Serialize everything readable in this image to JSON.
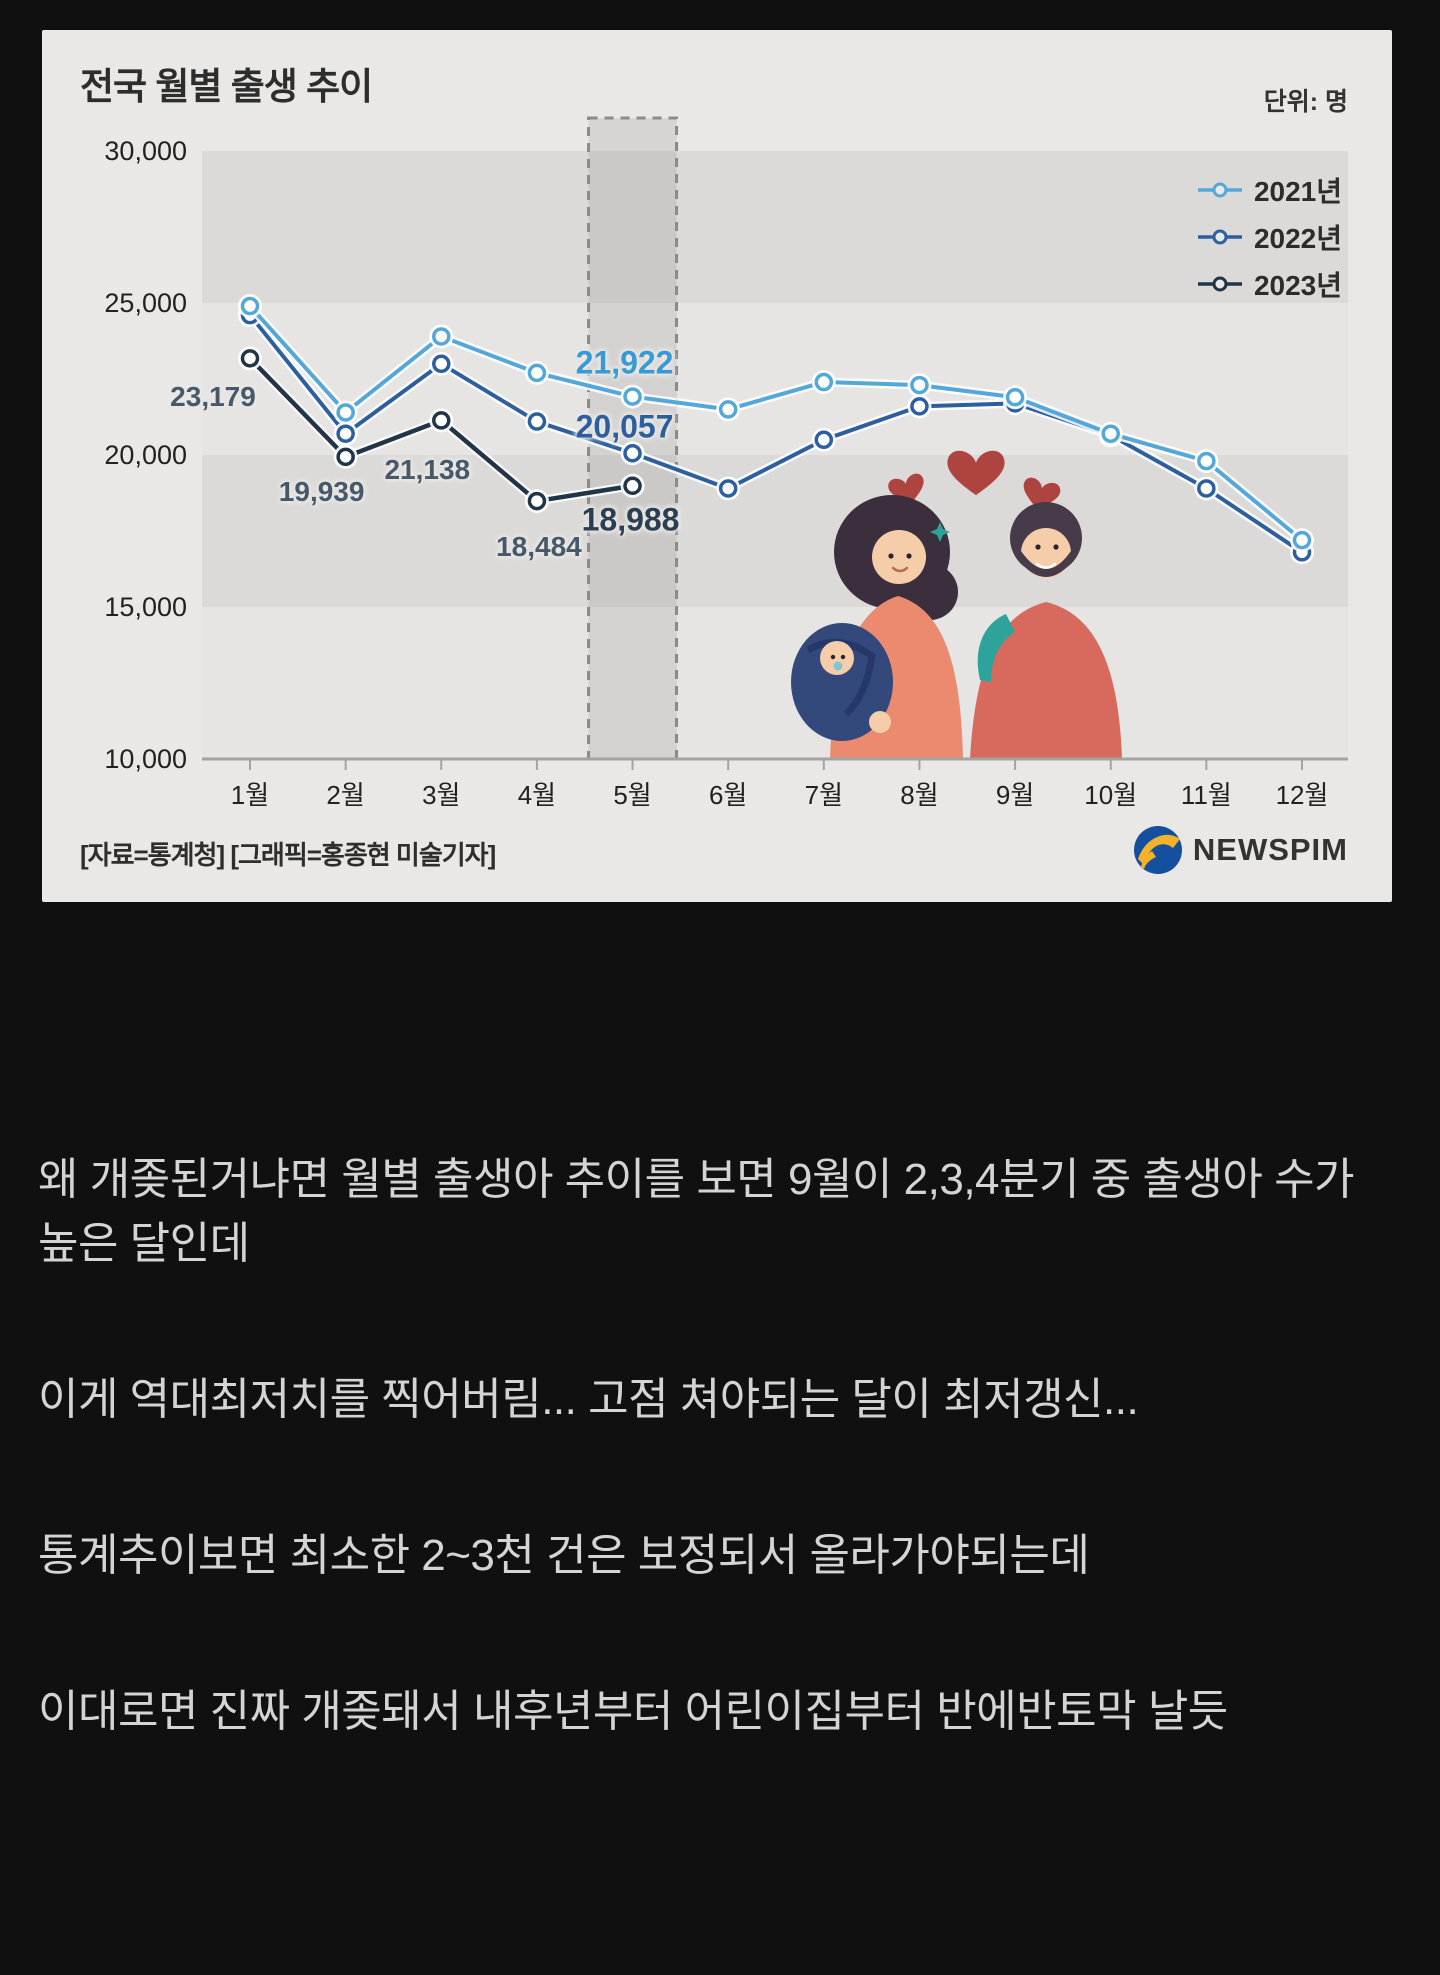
{
  "page": {
    "background": "#101010"
  },
  "card": {
    "title": "전국 월별 출생 추이",
    "unit_label": "단위: 명",
    "source_label": "[자료=통계청] [그래픽=홍종현 미술기자]",
    "publisher": "NEWSPIM"
  },
  "chart_data": {
    "type": "line",
    "title": "전국 월별 출생 추이",
    "unit": "명",
    "categories": [
      "1월",
      "2월",
      "3월",
      "4월",
      "5월",
      "6월",
      "7월",
      "8월",
      "9월",
      "10월",
      "11월",
      "12월"
    ],
    "ylim": [
      10000,
      30000
    ],
    "ytick_labels": [
      "30,000",
      "25,000",
      "20,000",
      "15,000",
      "10,000"
    ],
    "yticks": [
      30000,
      25000,
      20000,
      15000,
      10000
    ],
    "grid": "alternating-horizontal-bands",
    "legend_position": "top-right",
    "highlight_month": "5월",
    "series": [
      {
        "name": "2021년",
        "color": "#54a7d9",
        "values": [
          24900,
          21400,
          23900,
          22700,
          21922,
          21500,
          22400,
          22300,
          21900,
          20700,
          19800,
          17200
        ]
      },
      {
        "name": "2022년",
        "color": "#2d5f9f",
        "values": [
          24600,
          20700,
          23000,
          21100,
          20057,
          18900,
          20500,
          21600,
          21700,
          20650,
          18900,
          16800
        ]
      },
      {
        "name": "2023년",
        "color": "#213448",
        "values": [
          23179,
          19939,
          21138,
          18484,
          18988
        ]
      }
    ],
    "annotations": [
      {
        "text": "23,179",
        "series": "2023년",
        "month": "1월",
        "emphasis": false
      },
      {
        "text": "19,939",
        "series": "2023년",
        "month": "2월",
        "emphasis": false
      },
      {
        "text": "21,138",
        "series": "2023년",
        "month": "3월",
        "emphasis": false
      },
      {
        "text": "18,484",
        "series": "2023년",
        "month": "4월",
        "emphasis": false
      },
      {
        "text": "21,922",
        "series": "2021년",
        "month": "5월",
        "emphasis": true
      },
      {
        "text": "20,057",
        "series": "2022년",
        "month": "5월",
        "emphasis": true
      },
      {
        "text": "18,988",
        "series": "2023년",
        "month": "5월",
        "emphasis": true
      }
    ]
  },
  "post_text": {
    "paragraphs": [
      "왜 개좆된거냐면 월별 출생아 추이를 보면 9월이 2,3,4분기 중 출생아 수가 높은 달인데",
      "이게 역대최저치를 찍어버림... 고점 쳐야되는 달이 최저갱신...",
      "통계추이보면 최소한 2~3천 건은 보정되서 올라가야되는데",
      "이대로면 진짜 개좆돼서 내후년부터 어린이집부터 반에반토막 날듯"
    ]
  }
}
